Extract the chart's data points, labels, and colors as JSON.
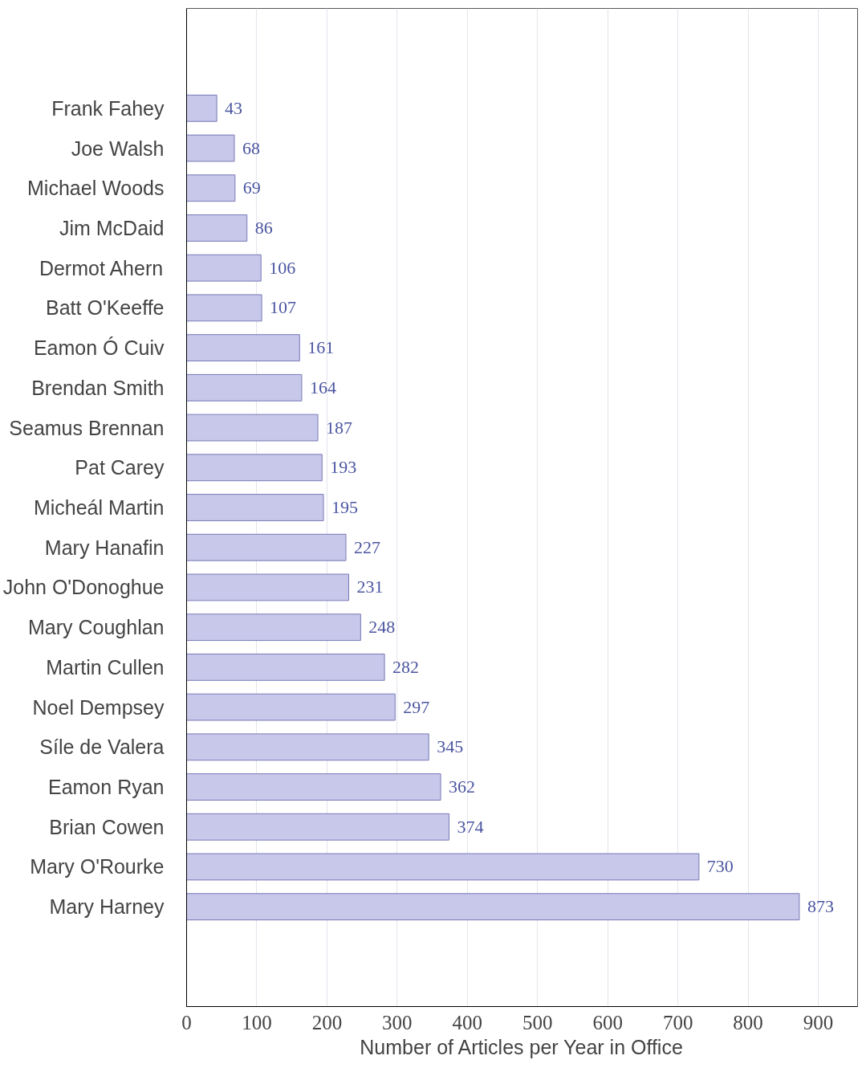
{
  "chart_data": {
    "type": "bar",
    "orientation": "horizontal",
    "xlabel": "Number of Articles per Year in Office",
    "categories": [
      "Frank Fahey",
      "Joe Walsh",
      "Michael Woods",
      "Jim McDaid",
      "Dermot Ahern",
      "Batt O'Keeffe",
      "Eamon Ó Cuiv",
      "Brendan Smith",
      "Seamus Brennan",
      "Pat Carey",
      "Micheál Martin",
      "Mary Hanafin",
      "John O'Donoghue",
      "Mary Coughlan",
      "Martin Cullen",
      "Noel Dempsey",
      "Síle de Valera",
      "Eamon Ryan",
      "Brian Cowen",
      "Mary O'Rourke",
      "Mary Harney"
    ],
    "values": [
      43,
      68,
      69,
      86,
      106,
      107,
      161,
      164,
      187,
      193,
      195,
      227,
      231,
      248,
      282,
      297,
      345,
      362,
      374,
      730,
      873
    ],
    "color": "#c8c8ea",
    "xlim": [
      0,
      956
    ],
    "xticks": [
      0,
      100,
      200,
      300,
      400,
      500,
      600,
      700,
      800,
      900
    ],
    "grid": "x",
    "data_labels": true
  }
}
